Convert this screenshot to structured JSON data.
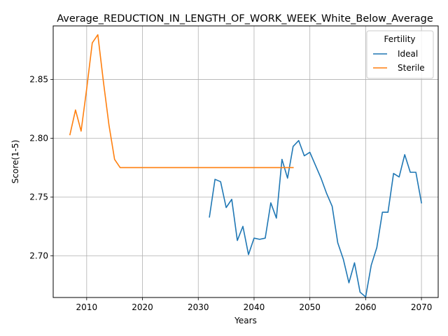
{
  "chart_data": {
    "type": "line",
    "title": "Average_REDUCTION_IN_LENGTH_OF_WORK_WEEK_White_Below_Average",
    "xlabel": "Years",
    "ylabel": "Score(1-5)",
    "xlim": [
      2004,
      2073
    ],
    "ylim": [
      2.6645,
      2.8955
    ],
    "xticks": [
      2010,
      2020,
      2030,
      2040,
      2050,
      2060,
      2070
    ],
    "yticks": [
      2.7,
      2.75,
      2.8,
      2.85
    ],
    "ytick_labels": [
      "2.70",
      "2.75",
      "2.80",
      "2.85"
    ],
    "grid": true,
    "legend": {
      "title": "Fertility",
      "position": "top-right"
    },
    "series": [
      {
        "name": "Ideal",
        "color": "#1f77b4",
        "x": [
          2032,
          2033,
          2034,
          2035,
          2036,
          2037,
          2038,
          2039,
          2040,
          2041,
          2042,
          2043,
          2044,
          2045,
          2046,
          2047,
          2048,
          2049,
          2050,
          2051,
          2052,
          2053,
          2054,
          2055,
          2056,
          2057,
          2058,
          2059,
          2060,
          2061,
          2062,
          2063,
          2064,
          2065,
          2066,
          2067,
          2068,
          2069,
          2070
        ],
        "y": [
          2.733,
          2.765,
          2.763,
          2.741,
          2.748,
          2.713,
          2.725,
          2.701,
          2.715,
          2.714,
          2.715,
          2.745,
          2.732,
          2.782,
          2.766,
          2.793,
          2.798,
          2.785,
          2.788,
          2.777,
          2.766,
          2.753,
          2.742,
          2.711,
          2.697,
          2.677,
          2.694,
          2.669,
          2.665,
          2.692,
          2.707,
          2.737,
          2.737,
          2.77,
          2.767,
          2.786,
          2.771,
          2.771,
          2.745
        ]
      },
      {
        "name": "Sterile",
        "color": "#ff7f0e",
        "x": [
          2007,
          2008,
          2009,
          2010,
          2011,
          2012,
          2013,
          2014,
          2015,
          2016,
          2017,
          2018,
          2019,
          2020,
          2021,
          2022,
          2023,
          2024,
          2025,
          2026,
          2027,
          2028,
          2029,
          2030,
          2031,
          2032,
          2033,
          2034,
          2035,
          2036,
          2037,
          2038,
          2039,
          2040,
          2041,
          2042,
          2043,
          2044,
          2045,
          2046,
          2047
        ],
        "y": [
          2.803,
          2.824,
          2.806,
          2.842,
          2.881,
          2.888,
          2.848,
          2.811,
          2.782,
          2.775,
          2.775,
          2.775,
          2.775,
          2.775,
          2.775,
          2.775,
          2.775,
          2.775,
          2.775,
          2.775,
          2.775,
          2.775,
          2.775,
          2.775,
          2.775,
          2.775,
          2.775,
          2.775,
          2.775,
          2.775,
          2.775,
          2.775,
          2.775,
          2.775,
          2.775,
          2.775,
          2.775,
          2.775,
          2.775,
          2.775,
          2.775
        ]
      }
    ]
  }
}
